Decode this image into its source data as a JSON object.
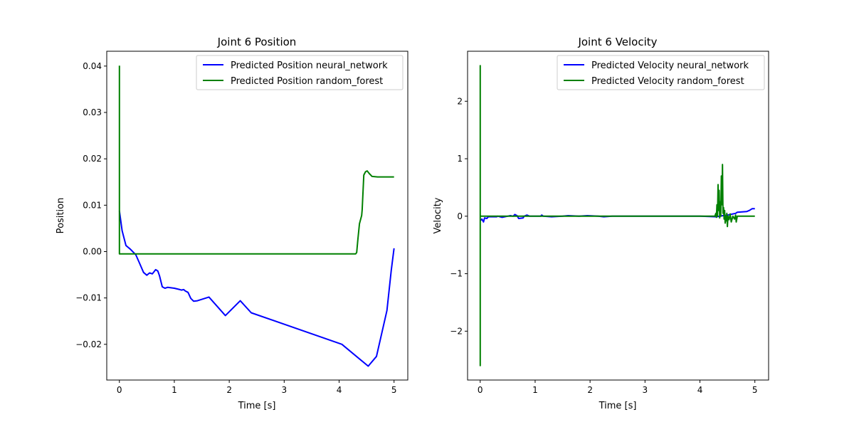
{
  "chart_data": [
    {
      "type": "line",
      "title": "Joint 6 Position",
      "xlabel": "Time [s]",
      "ylabel": "Position",
      "xlim": [
        -0.23,
        5.25
      ],
      "ylim": [
        -0.0277,
        0.0432
      ],
      "xticks": [
        0,
        1,
        2,
        3,
        4,
        5
      ],
      "xtick_labels": [
        "0",
        "1",
        "2",
        "3",
        "4",
        "5"
      ],
      "yticks": [
        -0.02,
        -0.01,
        0.0,
        0.01,
        0.02,
        0.03,
        0.04
      ],
      "ytick_labels": [
        "−0.02",
        "−0.01",
        "0.00",
        "0.01",
        "0.02",
        "0.03",
        "0.04"
      ],
      "grid": false,
      "legend_position": "top-right",
      "series": [
        {
          "name": "Predicted Position neural_network",
          "color": "#0000ff",
          "points": [
            [
              0.0,
              0.0088
            ],
            [
              0.05,
              0.0045
            ],
            [
              0.12,
              0.0013
            ],
            [
              0.2,
              0.0005
            ],
            [
              0.3,
              -0.0007
            ],
            [
              0.36,
              -0.0023
            ],
            [
              0.44,
              -0.0045
            ],
            [
              0.5,
              -0.0051
            ],
            [
              0.55,
              -0.0046
            ],
            [
              0.6,
              -0.0048
            ],
            [
              0.66,
              -0.0039
            ],
            [
              0.7,
              -0.0042
            ],
            [
              0.73,
              -0.0052
            ],
            [
              0.78,
              -0.0076
            ],
            [
              0.83,
              -0.0079
            ],
            [
              0.88,
              -0.0077
            ],
            [
              1.0,
              -0.0079
            ],
            [
              1.1,
              -0.0082
            ],
            [
              1.13,
              -0.0083
            ],
            [
              1.17,
              -0.0082
            ],
            [
              1.2,
              -0.0085
            ],
            [
              1.25,
              -0.0088
            ],
            [
              1.3,
              -0.0101
            ],
            [
              1.35,
              -0.0107
            ],
            [
              1.42,
              -0.0106
            ],
            [
              1.63,
              -0.0098
            ],
            [
              1.93,
              -0.0138
            ],
            [
              2.2,
              -0.0106
            ],
            [
              2.4,
              -0.0132
            ],
            [
              4.05,
              -0.02
            ],
            [
              4.53,
              -0.0247
            ],
            [
              4.68,
              -0.0226
            ],
            [
              4.87,
              -0.0127
            ],
            [
              4.95,
              -0.004
            ],
            [
              5.0,
              0.0007
            ]
          ]
        },
        {
          "name": "Predicted Position random_forest",
          "color": "#008000",
          "points": [
            [
              0.0,
              0.0401
            ],
            [
              0.0,
              -0.0005
            ],
            [
              4.3,
              -0.0005
            ],
            [
              4.32,
              -0.0002
            ],
            [
              4.34,
              0.0025
            ],
            [
              4.37,
              0.006
            ],
            [
              4.41,
              0.0078
            ],
            [
              4.42,
              0.009
            ],
            [
              4.45,
              0.0165
            ],
            [
              4.48,
              0.0172
            ],
            [
              4.51,
              0.0174
            ],
            [
              4.55,
              0.0168
            ],
            [
              4.6,
              0.0162
            ],
            [
              4.7,
              0.0161
            ],
            [
              5.0,
              0.0161
            ]
          ]
        }
      ]
    },
    {
      "type": "line",
      "title": "Joint 6 Velocity",
      "xlabel": "Time [s]",
      "ylabel": "Velocity",
      "xlim": [
        -0.23,
        5.25
      ],
      "ylim": [
        -2.85,
        2.87
      ],
      "xticks": [
        0,
        1,
        2,
        3,
        4,
        5
      ],
      "xtick_labels": [
        "0",
        "1",
        "2",
        "3",
        "4",
        "5"
      ],
      "yticks": [
        -2,
        -1,
        0,
        1,
        2
      ],
      "ytick_labels": [
        "−2",
        "−1",
        "0",
        "1",
        "2"
      ],
      "grid": false,
      "legend_position": "top-right",
      "series": [
        {
          "name": "Predicted Velocity neural_network",
          "color": "#0000ff",
          "points": [
            [
              0.0,
              -0.08
            ],
            [
              0.03,
              -0.05
            ],
            [
              0.06,
              -0.1
            ],
            [
              0.08,
              -0.03
            ],
            [
              0.12,
              -0.04
            ],
            [
              0.15,
              -0.01
            ],
            [
              0.3,
              -0.01
            ],
            [
              0.32,
              0.0
            ],
            [
              0.4,
              -0.02
            ],
            [
              0.5,
              0.0
            ],
            [
              0.55,
              0.01
            ],
            [
              0.6,
              0.0
            ],
            [
              0.63,
              0.03
            ],
            [
              0.67,
              0.01
            ],
            [
              0.7,
              -0.04
            ],
            [
              0.78,
              -0.03
            ],
            [
              0.8,
              0.0
            ],
            [
              0.85,
              0.02
            ],
            [
              0.9,
              0.0
            ],
            [
              1.1,
              0.0
            ],
            [
              1.12,
              0.02
            ],
            [
              1.15,
              0.0
            ],
            [
              1.3,
              -0.01
            ],
            [
              1.5,
              0.0
            ],
            [
              1.6,
              0.01
            ],
            [
              1.8,
              0.0
            ],
            [
              1.95,
              0.01
            ],
            [
              2.15,
              0.0
            ],
            [
              2.25,
              -0.01
            ],
            [
              2.4,
              0.0
            ],
            [
              4.0,
              0.0
            ],
            [
              4.3,
              -0.01
            ],
            [
              4.42,
              0.01
            ],
            [
              4.5,
              0.02
            ],
            [
              4.6,
              0.04
            ],
            [
              4.65,
              0.05
            ],
            [
              4.68,
              0.07
            ],
            [
              4.85,
              0.08
            ],
            [
              4.9,
              0.1
            ],
            [
              4.95,
              0.13
            ],
            [
              5.0,
              0.13
            ]
          ]
        },
        {
          "name": "Predicted Velocity random_forest",
          "color": "#008000",
          "points": [
            [
              0.0,
              0.0
            ],
            [
              0.0,
              2.62
            ],
            [
              0.0,
              -2.6
            ],
            [
              0.0,
              0.0
            ],
            [
              4.27,
              0.0
            ],
            [
              4.29,
              0.05
            ],
            [
              4.3,
              -0.02
            ],
            [
              4.31,
              0.2
            ],
            [
              4.32,
              0.0
            ],
            [
              4.33,
              0.55
            ],
            [
              4.34,
              0.1
            ],
            [
              4.35,
              0.45
            ],
            [
              4.36,
              -0.03
            ],
            [
              4.37,
              0.25
            ],
            [
              4.38,
              0.0
            ],
            [
              4.39,
              0.7
            ],
            [
              4.4,
              0.2
            ],
            [
              4.41,
              0.9
            ],
            [
              4.42,
              0.05
            ],
            [
              4.43,
              0.15
            ],
            [
              4.44,
              -0.05
            ],
            [
              4.45,
              0.1
            ],
            [
              4.46,
              -0.12
            ],
            [
              4.47,
              0.0
            ],
            [
              4.48,
              -0.08
            ],
            [
              4.49,
              0.05
            ],
            [
              4.5,
              -0.18
            ],
            [
              4.51,
              0.0
            ],
            [
              4.53,
              -0.06
            ],
            [
              4.55,
              0.04
            ],
            [
              4.57,
              -0.1
            ],
            [
              4.6,
              0.0
            ],
            [
              4.63,
              -0.05
            ],
            [
              4.65,
              0.02
            ],
            [
              4.66,
              -0.1
            ],
            [
              4.68,
              0.0
            ],
            [
              5.0,
              0.0
            ]
          ]
        }
      ]
    }
  ]
}
